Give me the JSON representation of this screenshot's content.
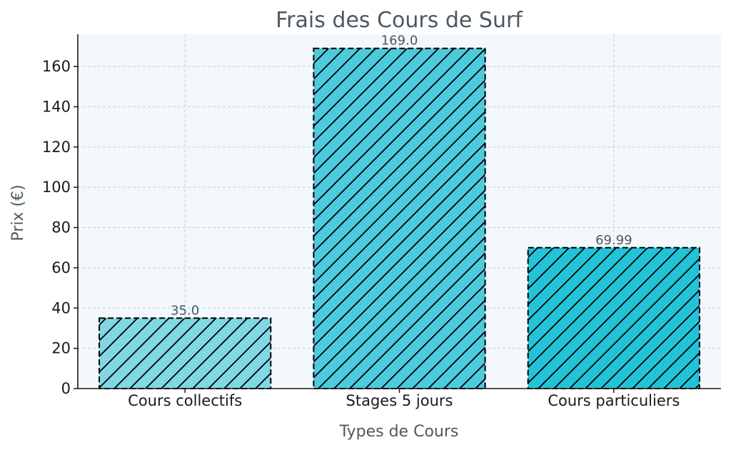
{
  "chart_data": {
    "type": "bar",
    "title": "Frais des Cours de Surf",
    "xlabel": "Types de Cours",
    "ylabel": "Prix (€)",
    "categories": [
      "Cours collectifs",
      "Stages 5 jours",
      "Cours particuliers"
    ],
    "values": [
      35.0,
      169.0,
      69.99
    ],
    "value_labels": [
      "35.0",
      "169.0",
      "69.99"
    ],
    "bar_colors": [
      "#7fd8e4",
      "#4dcadc",
      "#22c3d8"
    ],
    "ylim": [
      0,
      176
    ],
    "yticks": [
      0,
      20,
      40,
      60,
      80,
      100,
      120,
      140,
      160
    ],
    "grid": true,
    "plot_background": "#f2f8fc",
    "bar_pattern": "diagonal-hatch",
    "bar_edge_style": "dashed"
  }
}
